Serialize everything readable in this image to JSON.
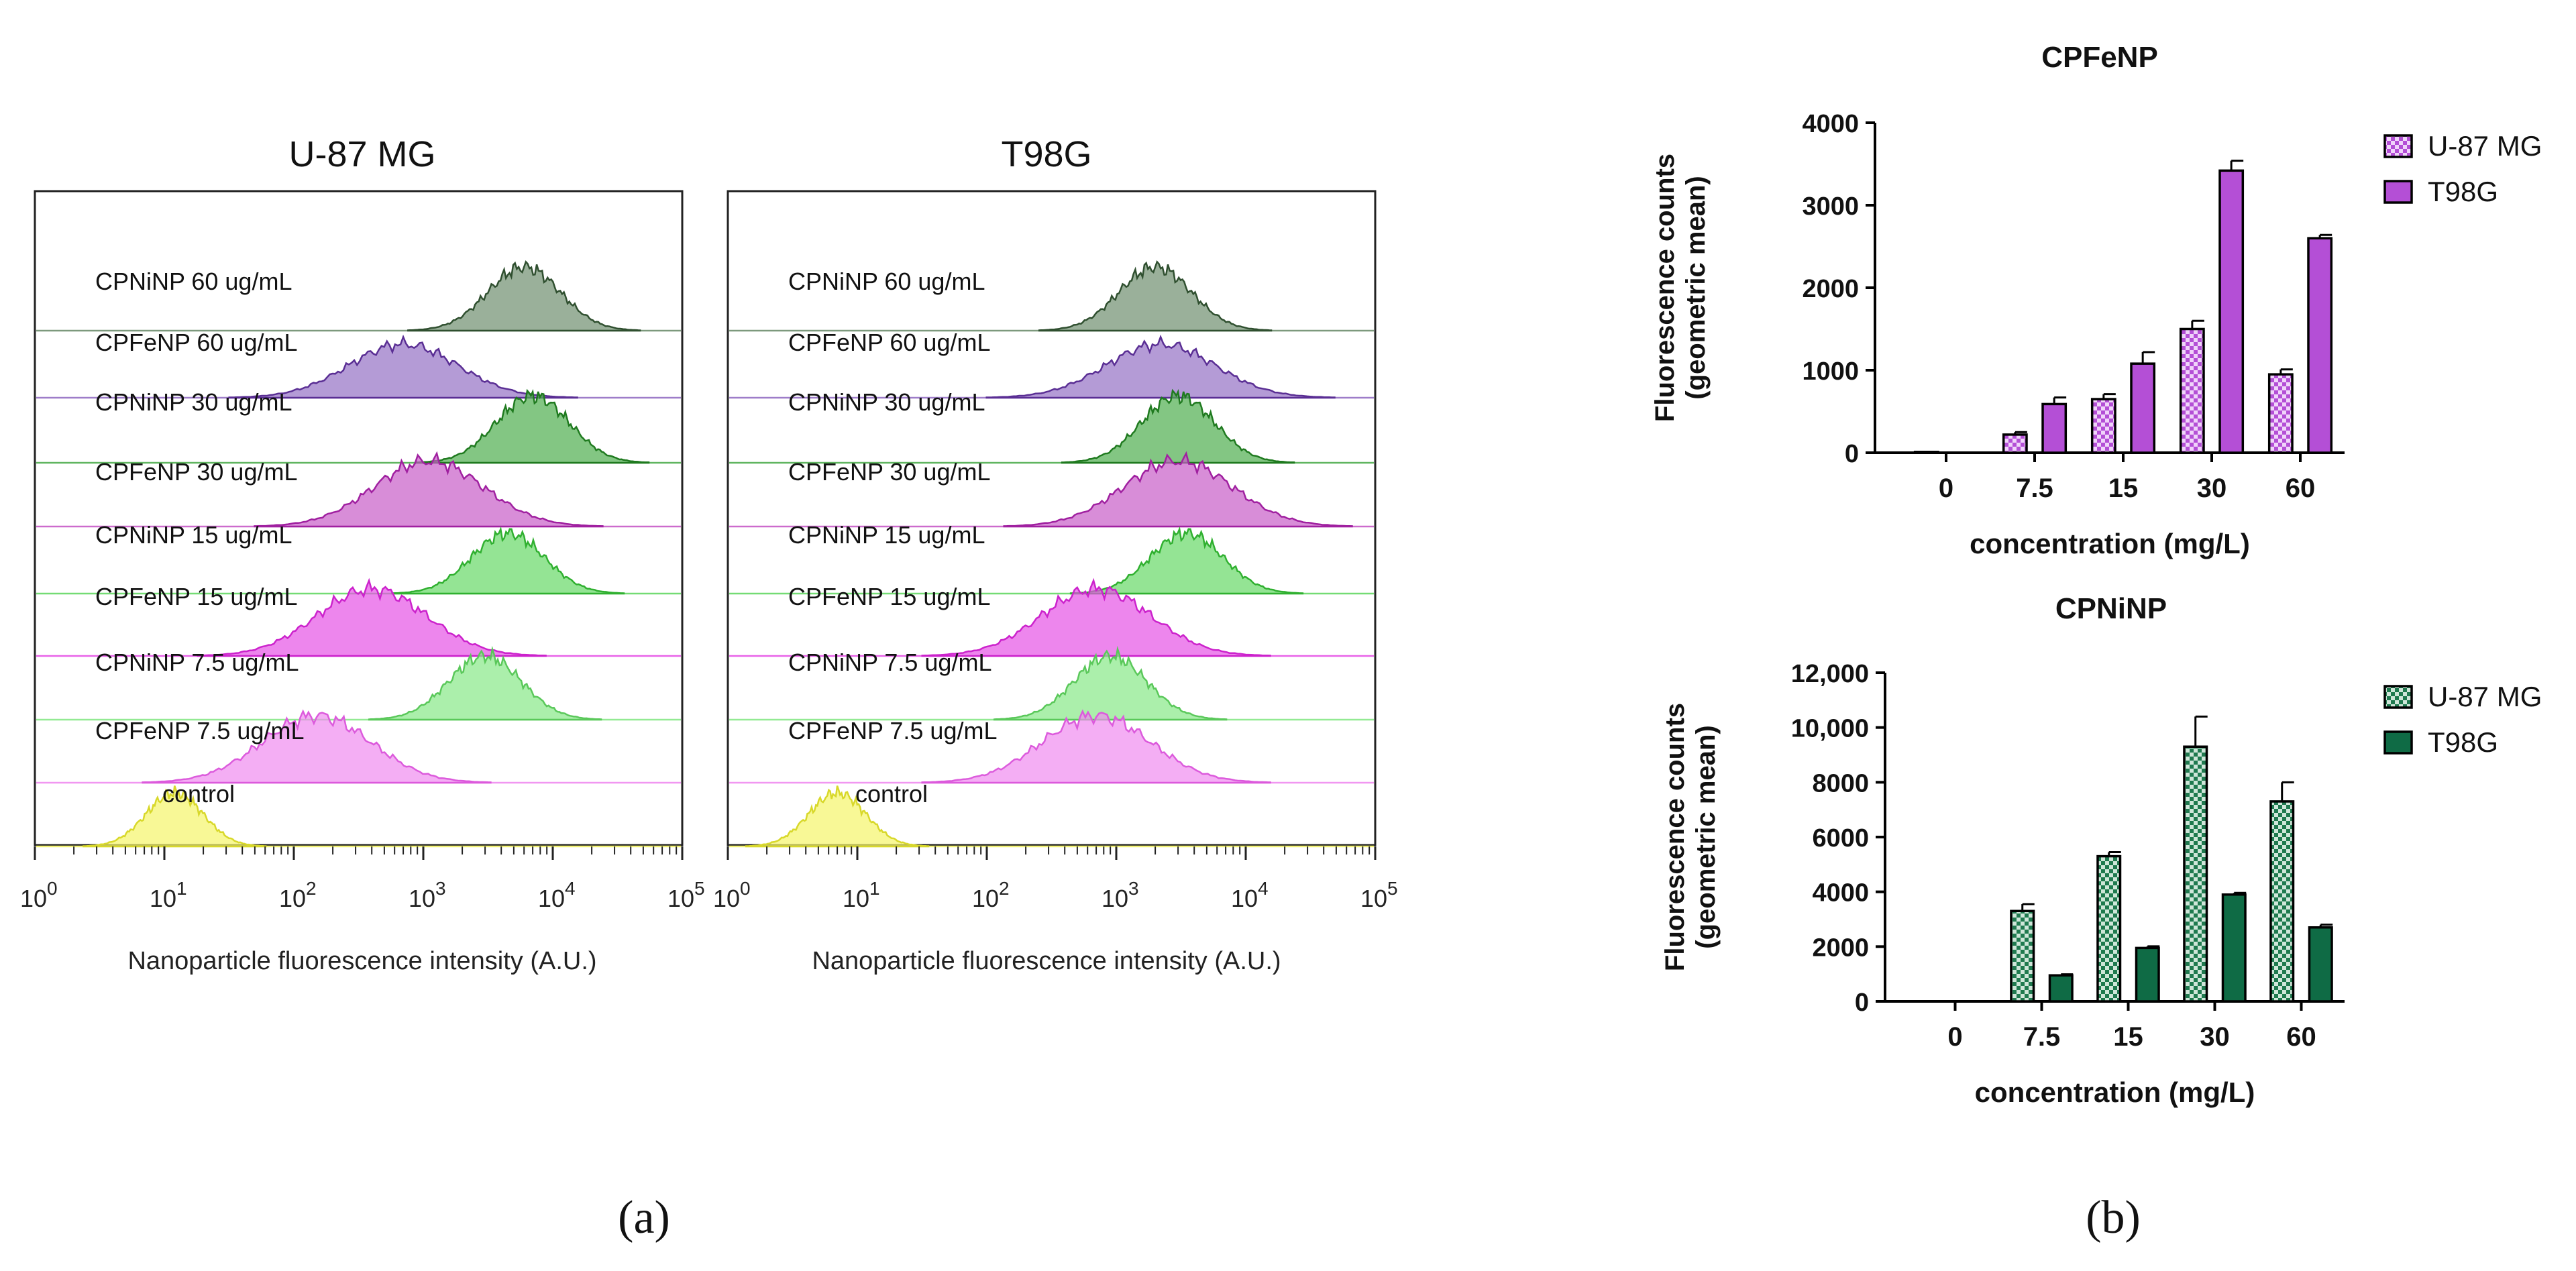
{
  "chart_data": [
    {
      "type": "histogram",
      "panel": "(a)",
      "subtitles": [
        "U-87 MG",
        "T98G"
      ],
      "xlabel": "Nanoparticle fluorescence intensity (A.U.)",
      "xscale": "log",
      "xlim": [
        1,
        100000
      ],
      "x_ticks": [
        {
          "base": "10",
          "exp": "0"
        },
        {
          "base": "10",
          "exp": "1"
        },
        {
          "base": "10",
          "exp": "2"
        },
        {
          "base": "10",
          "exp": "3"
        },
        {
          "base": "10",
          "exp": "4"
        },
        {
          "base": "10",
          "exp": "5"
        }
      ],
      "tracks": [
        {
          "label": "CPNiNP 60 ug/mL",
          "fill": "#6f8f6f",
          "stroke": "#2f4f2f",
          "peak_u87": 6000,
          "peak_t98g": 2000
        },
        {
          "label": "CPFeNP 60 ug/mL",
          "fill": "#9470c4",
          "stroke": "#5a2e94",
          "peak_u87": 700,
          "peak_t98g": 2200
        },
        {
          "label": "CPNiNP 30 ug/mL",
          "fill": "#4fae4f",
          "stroke": "#1f7a1f",
          "peak_u87": 7000,
          "peak_t98g": 3000
        },
        {
          "label": "CPFeNP 30 ug/mL",
          "fill": "#c85cc8",
          "stroke": "#a020a0",
          "peak_u87": 1100,
          "peak_t98g": 3000
        },
        {
          "label": "CPNiNP 15 ug/mL",
          "fill": "#66d966",
          "stroke": "#30b030",
          "peak_u87": 4500,
          "peak_t98g": 3500
        },
        {
          "label": "CPFeNP 15 ug/mL",
          "fill": "#e652e6",
          "stroke": "#cc22cc",
          "peak_u87": 400,
          "peak_t98g": 700
        },
        {
          "label": "CPNiNP 7.5 ug/mL",
          "fill": "#88e888",
          "stroke": "#5ac85a",
          "peak_u87": 3000,
          "peak_t98g": 900
        },
        {
          "label": "CPFeNP 7.5 ug/mL",
          "fill": "#f08cf0",
          "stroke": "#dc5adc",
          "peak_u87": 150,
          "peak_t98g": 700
        },
        {
          "label": "control",
          "fill": "#f5f56a",
          "stroke": "#d8d82a",
          "peak_u87": 12,
          "peak_t98g": 7
        }
      ]
    },
    {
      "type": "bar",
      "panel": "(b)",
      "title": "CPFeNP",
      "xlabel": "concentration (mg/L)",
      "ylabel": [
        "Fluorescence counts",
        "(geometric mean)"
      ],
      "categories": [
        "0",
        "7.5",
        "15",
        "30",
        "60"
      ],
      "ylim": [
        0,
        4000
      ],
      "yticks": [
        0,
        1000,
        2000,
        3000,
        4000
      ],
      "ytick_labels": [
        "0",
        "1000",
        "2000",
        "3000",
        "4000"
      ],
      "series": [
        {
          "name": "U-87 MG",
          "pattern": "checker",
          "color": "#b44fd6",
          "values": [
            10,
            220,
            650,
            1500,
            950
          ],
          "errors": [
            0,
            30,
            60,
            100,
            60
          ]
        },
        {
          "name": "T98G",
          "pattern": "solid",
          "color": "#b44fd6",
          "values": [
            0,
            590,
            1080,
            3420,
            2600
          ],
          "errors": [
            0,
            80,
            140,
            120,
            40
          ]
        }
      ]
    },
    {
      "type": "bar",
      "panel": "(b)",
      "title": "CPNiNP",
      "xlabel": "concentration (mg/L)",
      "ylabel": [
        "Fluorescence counts",
        "(geometric mean)"
      ],
      "categories": [
        "0",
        "7.5",
        "15",
        "30",
        "60"
      ],
      "ylim": [
        0,
        12000
      ],
      "yticks": [
        0,
        2000,
        4000,
        6000,
        8000,
        10000,
        12000
      ],
      "ytick_labels": [
        "0",
        "2000",
        "4000",
        "6000",
        "8000",
        "10,000",
        "12,000"
      ],
      "series": [
        {
          "name": "U-87 MG",
          "pattern": "checker",
          "color": "#1f7a4f",
          "values": [
            0,
            3300,
            5300,
            9300,
            7300
          ],
          "errors": [
            0,
            250,
            150,
            1100,
            700
          ]
        },
        {
          "name": "T98G",
          "pattern": "solid",
          "color": "#0f6b45",
          "values": [
            0,
            950,
            1950,
            3900,
            2700
          ],
          "errors": [
            0,
            40,
            60,
            60,
            100
          ]
        }
      ]
    }
  ]
}
